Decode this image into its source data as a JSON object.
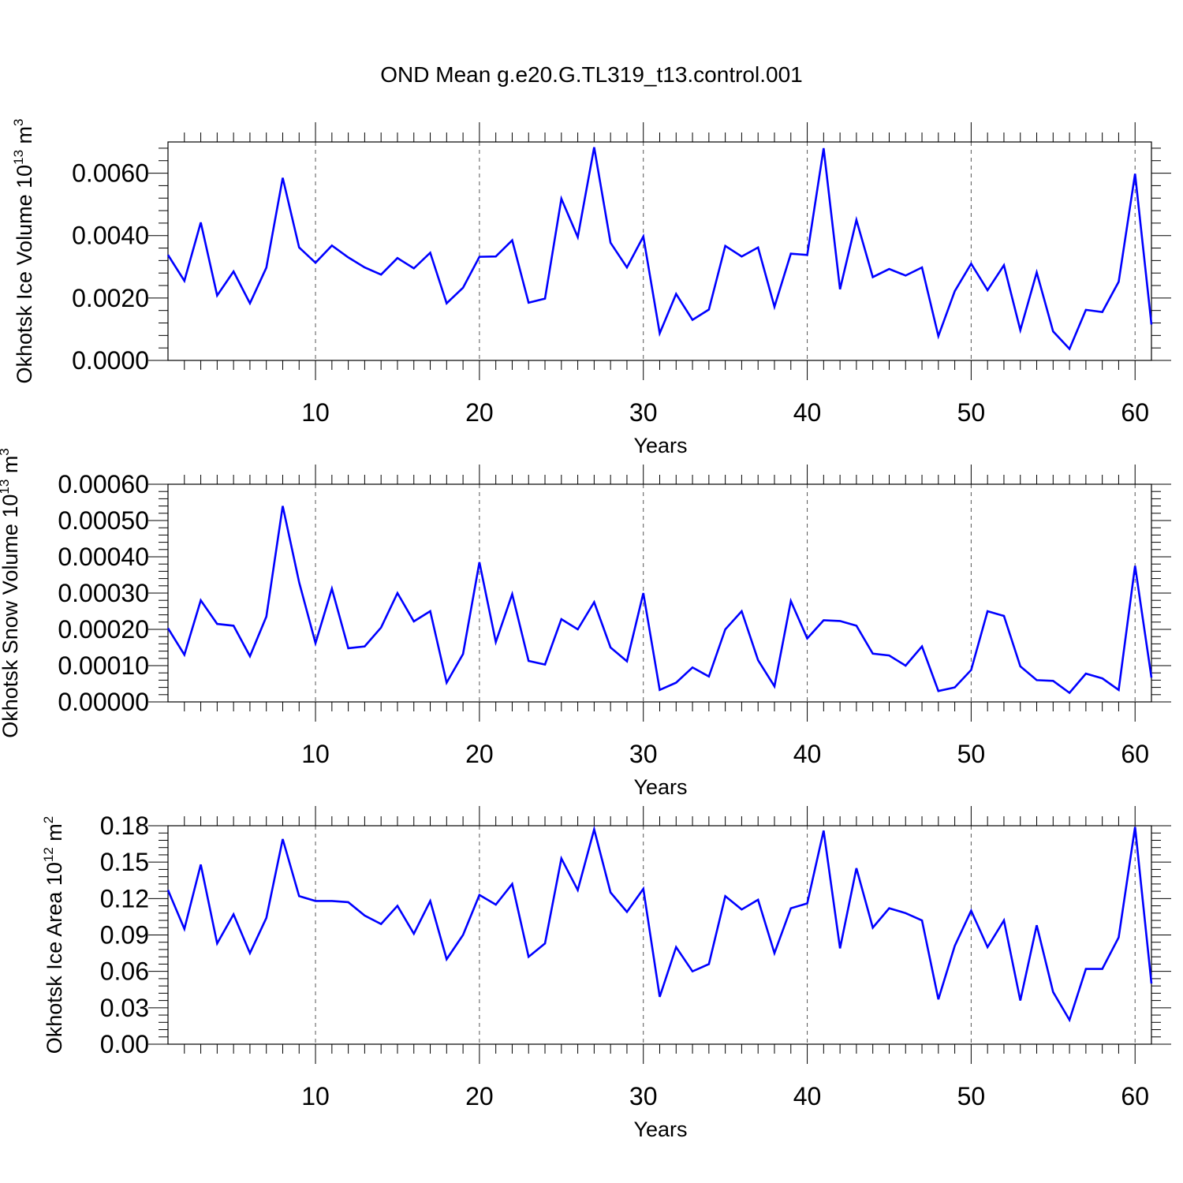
{
  "title": "OND Mean g.e20.G.TL319_t13.control.001",
  "colors": {
    "line": "#0000ff",
    "axis": "#000000",
    "grid": "#555555"
  },
  "chart_data": [
    {
      "type": "line",
      "xlabel": "Years",
      "ylabel": {
        "text": "Okhotsk Ice Volume 10",
        "sup1": "13",
        "mid": " m",
        "sup2": "3"
      },
      "xlim": [
        1,
        61
      ],
      "ylim": [
        0,
        0.007
      ],
      "xticks": [
        10,
        20,
        30,
        40,
        50,
        60
      ],
      "yticks": [
        0,
        0.002,
        0.004,
        0.006
      ],
      "ytick_labels": [
        "0.0000",
        "0.0020",
        "0.0040",
        "0.0060"
      ],
      "grid": "vertical-dashed",
      "series": [
        {
          "name": "Okhotsk Ice Volume",
          "values": [
            0.00338,
            0.00255,
            0.00442,
            0.00208,
            0.00285,
            0.00183,
            0.00297,
            0.00585,
            0.00362,
            0.00313,
            0.00368,
            0.0033,
            0.00298,
            0.00275,
            0.00328,
            0.00295,
            0.00345,
            0.00183,
            0.00233,
            0.00332,
            0.00333,
            0.00385,
            0.00185,
            0.00198,
            0.00518,
            0.00395,
            0.00683,
            0.00377,
            0.00298,
            0.00397,
            0.00087,
            0.00213,
            0.0013,
            0.00163,
            0.00367,
            0.00333,
            0.00362,
            0.00172,
            0.00342,
            0.00338,
            0.0068,
            0.00228,
            0.0045,
            0.00267,
            0.00293,
            0.00272,
            0.00298,
            0.00078,
            0.00222,
            0.0031,
            0.00225,
            0.00305,
            0.00097,
            0.00282,
            0.00093,
            0.00037,
            0.00162,
            0.00155,
            0.00252,
            0.00598,
            0.00115
          ]
        }
      ]
    },
    {
      "type": "line",
      "xlabel": "Years",
      "ylabel": {
        "text": "Okhotsk Snow Volume 10",
        "sup1": "13",
        "mid": " m",
        "sup2": "3"
      },
      "xlim": [
        1,
        61
      ],
      "ylim": [
        0,
        0.0006
      ],
      "xticks": [
        10,
        20,
        30,
        40,
        50,
        60
      ],
      "yticks": [
        0,
        0.0001,
        0.0002,
        0.0003,
        0.0004,
        0.0005,
        0.0006
      ],
      "ytick_labels": [
        "0.00000",
        "0.00010",
        "0.00020",
        "0.00030",
        "0.00040",
        "0.00050",
        "0.00060"
      ],
      "grid": "vertical-dashed",
      "series": [
        {
          "name": "Okhotsk Snow Volume",
          "values": [
            0.000203,
            0.00013,
            0.00028,
            0.000215,
            0.00021,
            0.000126,
            0.000235,
            0.00054,
            0.00033,
            0.000162,
            0.000312,
            0.000148,
            0.000153,
            0.000205,
            0.0003,
            0.000222,
            0.00025,
            5.3e-05,
            0.000132,
            0.000385,
            0.000165,
            0.000297,
            0.000113,
            0.000103,
            0.000228,
            0.0002,
            0.000275,
            0.00015,
            0.000112,
            0.0003,
            3.3e-05,
            5.3e-05,
            9.5e-05,
            7e-05,
            0.0002,
            0.00025,
            0.000115,
            4.3e-05,
            0.000278,
            0.000175,
            0.000225,
            0.000223,
            0.00021,
            0.000133,
            0.000128,
            0.0001,
            0.000153,
            3e-05,
            4e-05,
            8.8e-05,
            0.00025,
            0.000237,
            9.8e-05,
            6e-05,
            5.8e-05,
            2.5e-05,
            7.8e-05,
            6.5e-05,
            3.3e-05,
            0.000375,
            6.7e-05
          ]
        }
      ]
    },
    {
      "type": "line",
      "xlabel": "Years",
      "ylabel": {
        "text": "Okhotsk Ice Area 10",
        "sup1": "12",
        "mid": " m",
        "sup2": "2"
      },
      "xlim": [
        1,
        61
      ],
      "ylim": [
        0,
        0.18
      ],
      "xticks": [
        10,
        20,
        30,
        40,
        50,
        60
      ],
      "yticks": [
        0,
        0.03,
        0.06,
        0.09,
        0.12,
        0.15,
        0.18
      ],
      "ytick_labels": [
        "0.00",
        "0.03",
        "0.06",
        "0.09",
        "0.12",
        "0.15",
        "0.18"
      ],
      "grid": "vertical-dashed",
      "series": [
        {
          "name": "Okhotsk Ice Area",
          "values": [
            0.127,
            0.095,
            0.148,
            0.083,
            0.107,
            0.075,
            0.104,
            0.169,
            0.122,
            0.118,
            0.118,
            0.117,
            0.106,
            0.099,
            0.114,
            0.091,
            0.118,
            0.07,
            0.09,
            0.123,
            0.115,
            0.132,
            0.072,
            0.083,
            0.153,
            0.127,
            0.177,
            0.125,
            0.109,
            0.128,
            0.039,
            0.08,
            0.06,
            0.066,
            0.122,
            0.111,
            0.119,
            0.075,
            0.112,
            0.116,
            0.176,
            0.079,
            0.145,
            0.096,
            0.112,
            0.108,
            0.102,
            0.037,
            0.081,
            0.11,
            0.08,
            0.102,
            0.036,
            0.098,
            0.043,
            0.02,
            0.062,
            0.062,
            0.088,
            0.179,
            0.05
          ]
        }
      ]
    }
  ]
}
